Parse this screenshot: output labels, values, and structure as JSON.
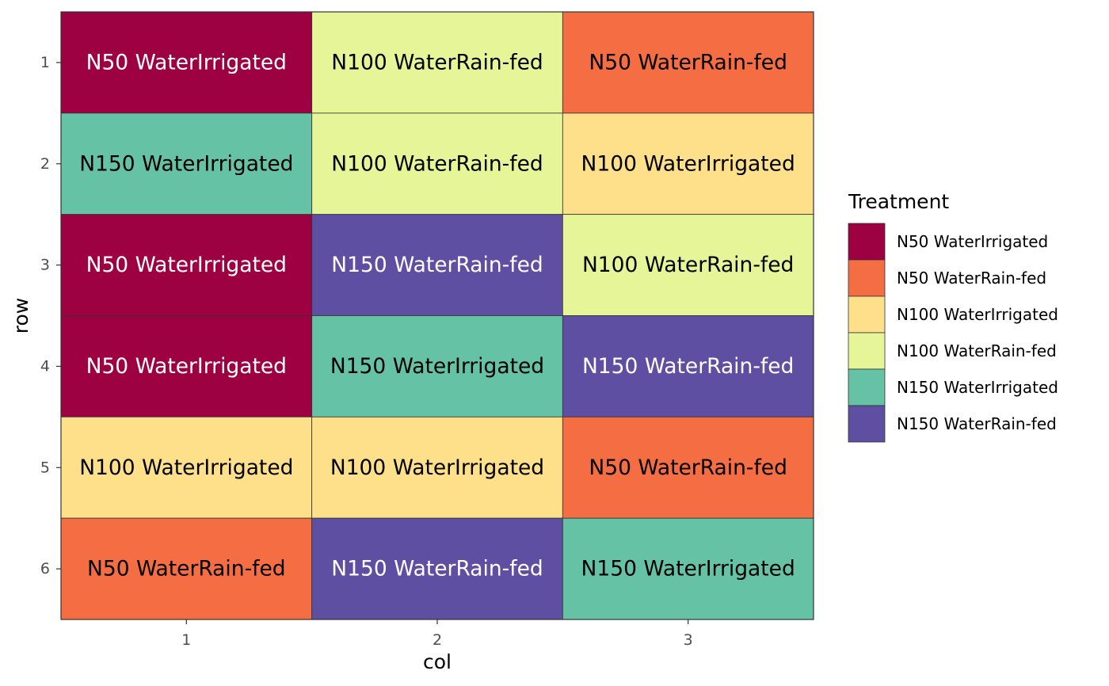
{
  "chart_data": {
    "type": "heatmap",
    "xlabel": "col",
    "ylabel": "row",
    "x_categories": [
      "1",
      "2",
      "3"
    ],
    "y_categories": [
      "1",
      "2",
      "3",
      "4",
      "5",
      "6"
    ],
    "legend": {
      "title": "Treatment",
      "placement": "right",
      "entries": [
        {
          "label": "N50 WaterIrrigated",
          "color": "#9E0142"
        },
        {
          "label": "N50 WaterRain-fed",
          "color": "#F46D43"
        },
        {
          "label": "N100 WaterIrrigated",
          "color": "#FEE08B"
        },
        {
          "label": "N100 WaterRain-fed",
          "color": "#E6F598"
        },
        {
          "label": "N150 WaterIrrigated",
          "color": "#66C2A5"
        },
        {
          "label": "N150 WaterRain-fed",
          "color": "#5E4FA2"
        }
      ]
    },
    "dark_fill_text_color": "#ffffff",
    "light_fill_text_color": "#000000",
    "dark_fills": [
      "N50 WaterIrrigated",
      "N150 WaterRain-fed"
    ],
    "cells": [
      {
        "row": 1,
        "col": 1,
        "treatment": "N50 WaterIrrigated"
      },
      {
        "row": 1,
        "col": 2,
        "treatment": "N100 WaterRain-fed"
      },
      {
        "row": 1,
        "col": 3,
        "treatment": "N50 WaterRain-fed"
      },
      {
        "row": 2,
        "col": 1,
        "treatment": "N150 WaterIrrigated"
      },
      {
        "row": 2,
        "col": 2,
        "treatment": "N100 WaterRain-fed"
      },
      {
        "row": 2,
        "col": 3,
        "treatment": "N100 WaterIrrigated"
      },
      {
        "row": 3,
        "col": 1,
        "treatment": "N50 WaterIrrigated"
      },
      {
        "row": 3,
        "col": 2,
        "treatment": "N150 WaterRain-fed"
      },
      {
        "row": 3,
        "col": 3,
        "treatment": "N100 WaterRain-fed"
      },
      {
        "row": 4,
        "col": 1,
        "treatment": "N50 WaterIrrigated"
      },
      {
        "row": 4,
        "col": 2,
        "treatment": "N150 WaterIrrigated"
      },
      {
        "row": 4,
        "col": 3,
        "treatment": "N150 WaterRain-fed"
      },
      {
        "row": 5,
        "col": 1,
        "treatment": "N100 WaterIrrigated"
      },
      {
        "row": 5,
        "col": 2,
        "treatment": "N100 WaterIrrigated"
      },
      {
        "row": 5,
        "col": 3,
        "treatment": "N50 WaterRain-fed"
      },
      {
        "row": 6,
        "col": 1,
        "treatment": "N50 WaterRain-fed"
      },
      {
        "row": 6,
        "col": 2,
        "treatment": "N150 WaterRain-fed"
      },
      {
        "row": 6,
        "col": 3,
        "treatment": "N150 WaterIrrigated"
      }
    ]
  }
}
